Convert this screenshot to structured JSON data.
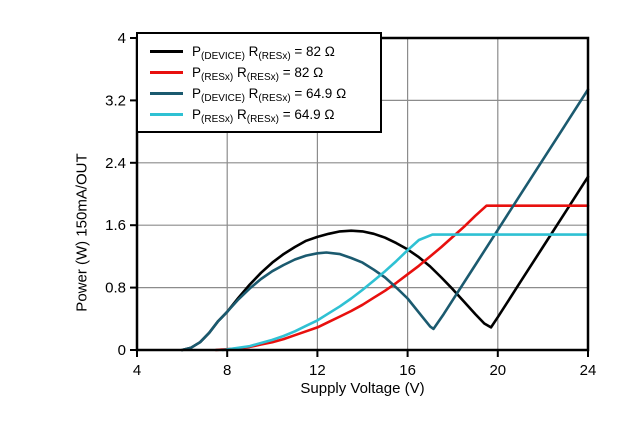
{
  "chart_data": {
    "type": "line",
    "title": "",
    "xlabel": "Supply Voltage (V)",
    "ylabel": "Power (W) 150mA/OUT",
    "xlim": [
      4,
      24
    ],
    "ylim": [
      0,
      4
    ],
    "x_ticks": [
      "4",
      "8",
      "12",
      "16",
      "20",
      "24"
    ],
    "y_ticks": [
      "0",
      "0.8",
      "1.6",
      "2.4",
      "3.2",
      "4"
    ],
    "grid": true,
    "legend_position": "top-left",
    "axis_color": "#000000",
    "grid_color": "#8c8c8c",
    "series": [
      {
        "name": "P(DEVICE) R(RESx) = 82 Ω",
        "label_parts": [
          [
            "P",
            0
          ],
          [
            "(DEVICE)",
            1
          ],
          [
            " R",
            0
          ],
          [
            "(RESx)",
            1
          ],
          [
            " = 82 Ω",
            0
          ]
        ],
        "color": "#000000",
        "points": [
          [
            6,
            0
          ],
          [
            6.4,
            0.03
          ],
          [
            6.8,
            0.1
          ],
          [
            7.2,
            0.22
          ],
          [
            7.6,
            0.37
          ],
          [
            8,
            0.49
          ],
          [
            8.5,
            0.67
          ],
          [
            9,
            0.84
          ],
          [
            9.5,
            0.99
          ],
          [
            10,
            1.12
          ],
          [
            10.5,
            1.23
          ],
          [
            11,
            1.32
          ],
          [
            11.5,
            1.4
          ],
          [
            12,
            1.45
          ],
          [
            12.5,
            1.49
          ],
          [
            13,
            1.52
          ],
          [
            13.5,
            1.53
          ],
          [
            14,
            1.52
          ],
          [
            14.5,
            1.49
          ],
          [
            15,
            1.44
          ],
          [
            15.5,
            1.37
          ],
          [
            16,
            1.29
          ],
          [
            16.5,
            1.19
          ],
          [
            17,
            1.07
          ],
          [
            17.5,
            0.93
          ],
          [
            18,
            0.78
          ],
          [
            18.5,
            0.62
          ],
          [
            19,
            0.46
          ],
          [
            19.4,
            0.34
          ],
          [
            19.7,
            0.29
          ],
          [
            20,
            0.42
          ],
          [
            21,
            0.87
          ],
          [
            22,
            1.32
          ],
          [
            23,
            1.77
          ],
          [
            24,
            2.22
          ]
        ]
      },
      {
        "name": "P(RESx) R(RESx) = 82 Ω",
        "label_parts": [
          [
            "P",
            0
          ],
          [
            "(RESx)",
            1
          ],
          [
            " R",
            0
          ],
          [
            "(RESx)",
            1
          ],
          [
            " = 82 Ω",
            0
          ]
        ],
        "color": "#e8100e",
        "points": [
          [
            7.5,
            0
          ],
          [
            8,
            0.01
          ],
          [
            8.5,
            0.02
          ],
          [
            9,
            0.04
          ],
          [
            9.5,
            0.07
          ],
          [
            10,
            0.1
          ],
          [
            10.5,
            0.14
          ],
          [
            11,
            0.19
          ],
          [
            11.5,
            0.24
          ],
          [
            12,
            0.29
          ],
          [
            12.5,
            0.36
          ],
          [
            13,
            0.43
          ],
          [
            13.5,
            0.5
          ],
          [
            14,
            0.58
          ],
          [
            14.5,
            0.67
          ],
          [
            15,
            0.76
          ],
          [
            15.5,
            0.86
          ],
          [
            16,
            0.97
          ],
          [
            16.5,
            1.08
          ],
          [
            17,
            1.2
          ],
          [
            17.5,
            1.32
          ],
          [
            18,
            1.45
          ],
          [
            18.5,
            1.58
          ],
          [
            19,
            1.72
          ],
          [
            19.5,
            1.85
          ],
          [
            24,
            1.85
          ]
        ]
      },
      {
        "name": "P(DEVICE) R(RESx) = 64.9 Ω",
        "label_parts": [
          [
            "P",
            0
          ],
          [
            "(DEVICE)",
            1
          ],
          [
            " R",
            0
          ],
          [
            "(RESx)",
            1
          ],
          [
            " = 64.9 Ω",
            0
          ]
        ],
        "color": "#1b5a6f",
        "points": [
          [
            6,
            0
          ],
          [
            6.4,
            0.03
          ],
          [
            6.8,
            0.1
          ],
          [
            7.2,
            0.22
          ],
          [
            7.6,
            0.37
          ],
          [
            8,
            0.49
          ],
          [
            8.5,
            0.65
          ],
          [
            9,
            0.79
          ],
          [
            9.5,
            0.91
          ],
          [
            10,
            1.01
          ],
          [
            10.5,
            1.09
          ],
          [
            11,
            1.16
          ],
          [
            11.5,
            1.21
          ],
          [
            12,
            1.24
          ],
          [
            12.4,
            1.25
          ],
          [
            13,
            1.23
          ],
          [
            13.5,
            1.18
          ],
          [
            14,
            1.12
          ],
          [
            14.5,
            1.03
          ],
          [
            15,
            0.93
          ],
          [
            15.5,
            0.8
          ],
          [
            16,
            0.66
          ],
          [
            16.5,
            0.48
          ],
          [
            17,
            0.3
          ],
          [
            17.15,
            0.27
          ],
          [
            17.6,
            0.46
          ],
          [
            18,
            0.64
          ],
          [
            19,
            1.09
          ],
          [
            20,
            1.54
          ],
          [
            21,
            1.99
          ],
          [
            22,
            2.44
          ],
          [
            23,
            2.89
          ],
          [
            24,
            3.34
          ]
        ]
      },
      {
        "name": "P(RESx) R(RESx) = 64.9 Ω",
        "label_parts": [
          [
            "P",
            0
          ],
          [
            "(RESx)",
            1
          ],
          [
            " R",
            0
          ],
          [
            "(RESx)",
            1
          ],
          [
            " = 64.9 Ω",
            0
          ]
        ],
        "color": "#2fc1d3",
        "points": [
          [
            7.8,
            0
          ],
          [
            8.3,
            0.02
          ],
          [
            9,
            0.05
          ],
          [
            9.5,
            0.09
          ],
          [
            10,
            0.13
          ],
          [
            10.5,
            0.18
          ],
          [
            11,
            0.24
          ],
          [
            11.5,
            0.31
          ],
          [
            12,
            0.38
          ],
          [
            12.5,
            0.47
          ],
          [
            13,
            0.56
          ],
          [
            13.5,
            0.66
          ],
          [
            14,
            0.77
          ],
          [
            14.5,
            0.89
          ],
          [
            15,
            1.01
          ],
          [
            15.5,
            1.14
          ],
          [
            16,
            1.28
          ],
          [
            16.5,
            1.41
          ],
          [
            17.1,
            1.48
          ],
          [
            24,
            1.48
          ]
        ]
      }
    ]
  }
}
